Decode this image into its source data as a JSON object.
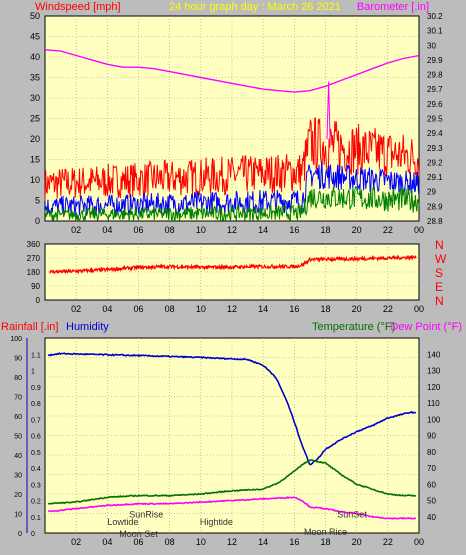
{
  "chart_data": [
    {
      "type": "line",
      "title": "24 hour graph day : March 26 2021",
      "ylabel_left": "Windspeed [mph]",
      "ylabel_right": "Barometer [.in]",
      "x_ticks": [
        "02",
        "04",
        "06",
        "08",
        "10",
        "12",
        "14",
        "16",
        "18",
        "20",
        "22",
        "00"
      ],
      "ylim_left": [
        0,
        50
      ],
      "y_ticks_left": [
        0,
        5,
        10,
        15,
        20,
        25,
        30,
        35,
        40,
        45,
        50
      ],
      "ylim_right": [
        28.8,
        30.2
      ],
      "y_ticks_right": [
        "28.8",
        "28.9",
        "29",
        "29.1",
        "29.2",
        "29.3",
        "29.4",
        "29.5",
        "29.6",
        "29.7",
        "29.8",
        "29.9",
        "30",
        "30.1",
        "30.2"
      ],
      "grid": true,
      "series": [
        {
          "key": "barometer",
          "axis": "right",
          "color": "#ff00ff",
          "x": [
            0,
            1,
            2,
            3,
            4,
            5,
            6,
            7,
            8,
            9,
            10,
            11,
            12,
            13,
            14,
            15,
            16,
            17,
            18,
            19,
            20,
            21,
            22,
            23,
            24
          ],
          "values": [
            29.97,
            29.96,
            29.93,
            29.9,
            29.87,
            29.85,
            29.85,
            29.84,
            29.82,
            29.8,
            29.78,
            29.76,
            29.74,
            29.72,
            29.7,
            29.69,
            29.68,
            29.69,
            29.72,
            29.76,
            29.8,
            29.84,
            29.88,
            29.91,
            29.93
          ]
        },
        {
          "key": "wind_gust",
          "axis": "left",
          "color": "#ff0000",
          "x": [
            0,
            16.5,
            17,
            24
          ],
          "low": [
            5,
            7,
            12,
            10
          ],
          "high": [
            13,
            17,
            26,
            21
          ],
          "peak": 34
        },
        {
          "key": "wind_avg",
          "axis": "left",
          "color": "#0000ff",
          "x": [
            0,
            16.5,
            17,
            24
          ],
          "low": [
            1,
            2,
            8,
            6
          ],
          "high": [
            6,
            8,
            15,
            12
          ]
        },
        {
          "key": "wind_low",
          "axis": "left",
          "color": "#008000",
          "x": [
            0,
            16.5,
            17,
            24
          ],
          "low": [
            0,
            0,
            3,
            2
          ],
          "high": [
            3,
            4,
            9,
            8
          ]
        }
      ]
    },
    {
      "type": "line",
      "ylim": [
        0,
        360
      ],
      "y_ticks": [
        0,
        90,
        180,
        270,
        360
      ],
      "compass": [
        "N",
        "W",
        "S",
        "E",
        "N"
      ],
      "x_ticks": [
        "02",
        "04",
        "06",
        "08",
        "10",
        "12",
        "14",
        "16",
        "18",
        "20",
        "22",
        "00"
      ],
      "series": [
        {
          "key": "wind_direction",
          "color": "#ff0000",
          "x": [
            0,
            2,
            4,
            6,
            8,
            10,
            12,
            14,
            16,
            16.5,
            17,
            20,
            22,
            24
          ],
          "values": [
            180,
            185,
            195,
            210,
            215,
            210,
            212,
            215,
            215,
            225,
            260,
            265,
            270,
            275
          ],
          "spread": 22
        }
      ]
    },
    {
      "type": "line",
      "labels": {
        "rainfall": "Rainfall [.in]",
        "humidity": "Humidity",
        "temperature": "Temperature (°F)",
        "dewpoint": "Dew Point (°F)"
      },
      "x_ticks": [
        "02",
        "04",
        "06",
        "08",
        "10",
        "12",
        "14",
        "16",
        "18",
        "20",
        "22",
        "00"
      ],
      "ylim_humidity": [
        0,
        100
      ],
      "y_ticks_humidity": [
        0,
        10,
        20,
        30,
        40,
        50,
        60,
        70,
        80,
        90,
        100
      ],
      "ylim_rain": [
        0,
        1.2
      ],
      "y_ticks_rain": [
        "0",
        "0.1",
        "0.2",
        "0.3",
        "0.4",
        "0.5",
        "0.6",
        "0.7",
        "0.8",
        "0.9",
        "1",
        "1.1"
      ],
      "ylim_temp": [
        30,
        150
      ],
      "y_ticks_temp": [
        40,
        50,
        60,
        70,
        80,
        90,
        100,
        110,
        120,
        130,
        140
      ],
      "annotations": [
        {
          "text": "Lowtide",
          "x": 5.0,
          "yfrac": 0.04
        },
        {
          "text": "SunRise",
          "x": 6.5,
          "yfrac": 0.08
        },
        {
          "text": "Moon Set",
          "x": 6.0,
          "yfrac": -0.02
        },
        {
          "text": "Hightide",
          "x": 11.0,
          "yfrac": 0.04
        },
        {
          "text": "SunSet",
          "x": 19.7,
          "yfrac": 0.08
        },
        {
          "text": "Moon Rise",
          "x": 18.0,
          "yfrac": -0.01
        }
      ],
      "series": [
        {
          "key": "humidity",
          "axis": "humidity",
          "color": "#0000cc",
          "x": [
            0,
            1,
            6,
            10,
            13,
            14,
            14.8,
            15.5,
            16,
            16.5,
            17.0,
            17.5,
            18,
            19,
            20,
            21,
            22,
            23,
            23.5,
            24
          ],
          "values": [
            91,
            92,
            91,
            90,
            89,
            86,
            80,
            68,
            57,
            45,
            35,
            38,
            43,
            48,
            52,
            55,
            59,
            61,
            62,
            61
          ]
        },
        {
          "key": "temperature",
          "axis": "temp",
          "color": "#007000",
          "x": [
            0,
            2,
            4,
            6,
            8,
            10,
            12,
            14,
            15,
            16,
            16.5,
            17,
            18,
            19,
            20,
            22,
            23,
            24
          ],
          "values": [
            48,
            49,
            52,
            53,
            53,
            54,
            56,
            57,
            61,
            68,
            72,
            75,
            73,
            66,
            60,
            54,
            53,
            53
          ]
        },
        {
          "key": "dewpoint",
          "axis": "temp",
          "color": "#ff00ff",
          "x": [
            0,
            2,
            4,
            6,
            8,
            10,
            12,
            14,
            16,
            16.5,
            17,
            18,
            19,
            20,
            21,
            22,
            24
          ],
          "values": [
            43,
            45,
            47,
            48,
            48,
            49,
            50,
            51,
            52,
            50,
            46,
            45,
            43,
            42,
            40,
            39,
            39
          ]
        }
      ]
    }
  ]
}
